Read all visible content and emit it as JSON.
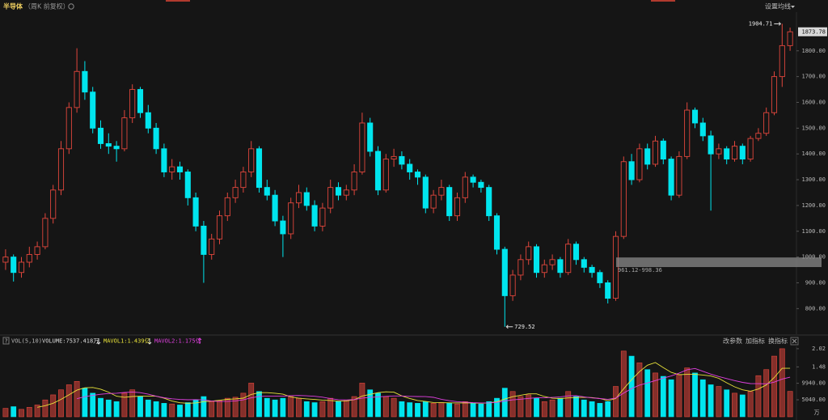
{
  "chart_data": [
    {
      "type": "candlestick",
      "title": "半导体",
      "subtitle": "（周K 前复权）",
      "settings_button": "设置均线",
      "up_color": "#e0463c",
      "down_color": "#00e5ee",
      "open": [
        980,
        1000,
        940,
        980,
        1010,
        1040,
        1150,
        1260,
        1420,
        1580,
        1720,
        1640,
        1500,
        1440,
        1430,
        1420,
        1540,
        1650,
        1560,
        1500,
        1420,
        1330,
        1350,
        1330,
        1230,
        1120,
        1010,
        1070,
        1160,
        1230,
        1270,
        1330,
        1420,
        1270,
        1240,
        1140,
        1090,
        1210,
        1250,
        1200,
        1120,
        1190,
        1270,
        1240,
        1260,
        1330,
        1520,
        1410,
        1260,
        1380,
        1390,
        1360,
        1330,
        1310,
        1190,
        1240,
        1270,
        1160,
        1230,
        1310,
        1290,
        1270,
        1160,
        1030,
        850,
        930,
        990,
        1040,
        940,
        970,
        990,
        940,
        1050,
        990,
        960,
        940,
        900,
        840,
        1080,
        1370,
        1300,
        1420,
        1360,
        1450,
        1380,
        1240,
        1390,
        1570,
        1520,
        1470,
        1400,
        1420,
        1380,
        1430,
        1380,
        1460,
        1480,
        1560,
        1700,
        1820
      ],
      "high": [
        1030,
        1010,
        1000,
        1040,
        1060,
        1170,
        1280,
        1450,
        1600,
        1810,
        1760,
        1660,
        1530,
        1480,
        1450,
        1570,
        1670,
        1660,
        1590,
        1520,
        1440,
        1380,
        1370,
        1340,
        1250,
        1140,
        1090,
        1180,
        1250,
        1300,
        1350,
        1450,
        1430,
        1300,
        1260,
        1160,
        1230,
        1280,
        1270,
        1220,
        1210,
        1300,
        1290,
        1280,
        1360,
        1560,
        1540,
        1430,
        1400,
        1420,
        1410,
        1380,
        1340,
        1320,
        1260,
        1300,
        1280,
        1250,
        1330,
        1320,
        1300,
        1280,
        1170,
        1040,
        950,
        1010,
        1060,
        1050,
        990,
        1010,
        1000,
        1070,
        1060,
        1000,
        970,
        950,
        910,
        1100,
        1390,
        1400,
        1440,
        1440,
        1470,
        1460,
        1390,
        1410,
        1600,
        1580,
        1540,
        1490,
        1440,
        1430,
        1450,
        1440,
        1470,
        1500,
        1580,
        1720,
        1904.71,
        1890
      ],
      "low": [
        950,
        905,
        920,
        960,
        990,
        1030,
        1130,
        1240,
        1400,
        1560,
        1610,
        1480,
        1420,
        1400,
        1370,
        1410,
        1520,
        1540,
        1480,
        1400,
        1310,
        1300,
        1300,
        1200,
        1100,
        900,
        990,
        1050,
        1140,
        1210,
        1250,
        1310,
        1250,
        1220,
        1120,
        1000,
        1070,
        1190,
        1180,
        1100,
        1100,
        1170,
        1220,
        1220,
        1240,
        1320,
        1390,
        1240,
        1250,
        1350,
        1340,
        1300,
        1280,
        1170,
        1170,
        1220,
        1140,
        1140,
        1210,
        1270,
        1250,
        1140,
        1010,
        729.52,
        830,
        910,
        970,
        920,
        920,
        950,
        920,
        930,
        970,
        940,
        920,
        880,
        820,
        830,
        1070,
        1280,
        1290,
        1340,
        1350,
        1360,
        1220,
        1230,
        1380,
        1500,
        1450,
        1180,
        1380,
        1360,
        1370,
        1360,
        1370,
        1450,
        1470,
        1550,
        1660,
        1800
      ],
      "close": [
        1000,
        940,
        980,
        1010,
        1040,
        1150,
        1260,
        1420,
        1580,
        1720,
        1640,
        1500,
        1440,
        1430,
        1420,
        1540,
        1650,
        1560,
        1500,
        1420,
        1330,
        1350,
        1330,
        1230,
        1120,
        1010,
        1070,
        1160,
        1230,
        1270,
        1330,
        1420,
        1270,
        1240,
        1140,
        1090,
        1210,
        1250,
        1200,
        1120,
        1190,
        1270,
        1240,
        1260,
        1330,
        1520,
        1410,
        1260,
        1380,
        1390,
        1360,
        1330,
        1310,
        1190,
        1240,
        1270,
        1160,
        1230,
        1310,
        1290,
        1270,
        1160,
        1030,
        850,
        930,
        990,
        1040,
        940,
        970,
        990,
        940,
        1050,
        990,
        960,
        940,
        900,
        840,
        1080,
        1370,
        1300,
        1420,
        1360,
        1450,
        1380,
        1240,
        1390,
        1570,
        1520,
        1470,
        1400,
        1420,
        1380,
        1430,
        1380,
        1460,
        1480,
        1560,
        1700,
        1820,
        1873.78
      ],
      "band": {
        "text": "961.12-998.36",
        "range": [
          961.12,
          998.36
        ]
      },
      "ylim": [
        710,
        1950
      ],
      "yticks": [
        {
          "value": 800,
          "label": "800.00"
        },
        {
          "value": 900,
          "label": "900.00"
        },
        {
          "value": 1000,
          "label": "1000.00"
        },
        {
          "value": 1100,
          "label": "1100.00"
        },
        {
          "value": 1200,
          "label": "1200.00"
        },
        {
          "value": 1300,
          "label": "1300.00"
        },
        {
          "value": 1400,
          "label": "1400.00"
        },
        {
          "value": 1500,
          "label": "1500.00"
        },
        {
          "value": 1600,
          "label": "1600.00"
        },
        {
          "value": 1700,
          "label": "1700.00"
        },
        {
          "value": 1800,
          "label": "1800.00"
        }
      ]
    },
    {
      "type": "bar",
      "title": "VOL(5,10)",
      "help": "?",
      "buttons": [
        "改参数",
        "加指标",
        "换指标"
      ],
      "unit": "万",
      "series": [
        {
          "label": "VOLUME:7537.418万",
          "values": [
            0.25,
            0.3,
            0.22,
            0.28,
            0.35,
            0.5,
            0.65,
            0.8,
            0.95,
            1.05,
            0.85,
            0.7,
            0.55,
            0.5,
            0.45,
            0.7,
            0.8,
            0.6,
            0.5,
            0.45,
            0.4,
            0.38,
            0.35,
            0.42,
            0.5,
            0.6,
            0.45,
            0.48,
            0.55,
            0.58,
            0.7,
            1.0,
            0.75,
            0.55,
            0.5,
            0.55,
            0.6,
            0.55,
            0.45,
            0.42,
            0.45,
            0.55,
            0.45,
            0.48,
            0.6,
            1.0,
            0.8,
            0.7,
            0.6,
            0.55,
            0.45,
            0.42,
            0.4,
            0.45,
            0.4,
            0.42,
            0.4,
            0.38,
            0.45,
            0.4,
            0.38,
            0.45,
            0.55,
            0.85,
            0.75,
            0.6,
            0.65,
            0.55,
            0.45,
            0.5,
            0.55,
            0.75,
            0.6,
            0.5,
            0.45,
            0.4,
            0.45,
            0.9,
            1.95,
            1.8,
            1.6,
            1.4,
            1.3,
            1.2,
            1.1,
            1.25,
            1.45,
            1.3,
            1.1,
            0.95,
            0.9,
            0.8,
            0.7,
            0.65,
            0.75,
            1.22,
            1.4,
            1.8,
            2.02,
            0.7537418
          ]
        },
        {
          "label": "MAVOL1:1.439亿",
          "type": "line",
          "color": "#e8e23a",
          "values": [
            null,
            null,
            null,
            null,
            0.28,
            0.33,
            0.4,
            0.516,
            0.65,
            0.79,
            0.86,
            0.87,
            0.82,
            0.73,
            0.61,
            0.58,
            0.6,
            0.61,
            0.61,
            0.61,
            0.55,
            0.466,
            0.416,
            0.4,
            0.41,
            0.45,
            0.464,
            0.49,
            0.516,
            0.532,
            0.552,
            0.662,
            0.716,
            0.716,
            0.7,
            0.67,
            0.59,
            0.55,
            0.53,
            0.514,
            0.494,
            0.484,
            0.464,
            0.47,
            0.506,
            0.616,
            0.666,
            0.716,
            0.74,
            0.73,
            0.62,
            0.544,
            0.484,
            0.454,
            0.424,
            0.418,
            0.414,
            0.41,
            0.41,
            0.41,
            0.402,
            0.412,
            0.446,
            0.526,
            0.596,
            0.64,
            0.68,
            0.68,
            0.6,
            0.55,
            0.54,
            0.56,
            0.57,
            0.58,
            0.57,
            0.54,
            0.48,
            0.54,
            0.83,
            1.1,
            1.34,
            1.53,
            1.61,
            1.46,
            1.32,
            1.25,
            1.26,
            1.26,
            1.24,
            1.21,
            1.14,
            1.01,
            0.89,
            0.8,
            0.76,
            0.824,
            0.944,
            1.164,
            1.438,
            1.439
          ]
        },
        {
          "label": "MAVOL2:1.175亿",
          "type": "line",
          "color": "#e040e0",
          "values": [
            null,
            null,
            null,
            null,
            null,
            null,
            null,
            null,
            null,
            0.535,
            0.595,
            0.635,
            0.668,
            0.69,
            0.7,
            0.72,
            0.735,
            0.715,
            0.67,
            0.61,
            0.565,
            0.533,
            0.513,
            0.505,
            0.51,
            0.5,
            0.465,
            0.453,
            0.458,
            0.471,
            0.501,
            0.563,
            0.603,
            0.616,
            0.616,
            0.611,
            0.626,
            0.633,
            0.623,
            0.607,
            0.582,
            0.537,
            0.507,
            0.5,
            0.51,
            0.555,
            0.575,
            0.59,
            0.605,
            0.618,
            0.618,
            0.605,
            0.6,
            0.597,
            0.577,
            0.519,
            0.479,
            0.447,
            0.432,
            0.417,
            0.41,
            0.413,
            0.428,
            0.468,
            0.503,
            0.521,
            0.546,
            0.563,
            0.563,
            0.573,
            0.59,
            0.62,
            0.625,
            0.59,
            0.56,
            0.54,
            0.52,
            0.555,
            0.705,
            0.835,
            0.94,
            1.005,
            1.075,
            1.145,
            1.21,
            1.295,
            1.395,
            1.435,
            1.35,
            1.265,
            1.195,
            1.135,
            1.075,
            1.02,
            0.985,
            0.982,
            0.977,
            1.027,
            1.119,
            1.175
          ]
        }
      ],
      "ylim": [
        0,
        2.09
      ],
      "yticks": [
        2.02,
        1.48,
        {
          "value": 0.994,
          "label": "9940.00"
        },
        {
          "value": 0.504,
          "label": "5040.00"
        }
      ]
    }
  ]
}
